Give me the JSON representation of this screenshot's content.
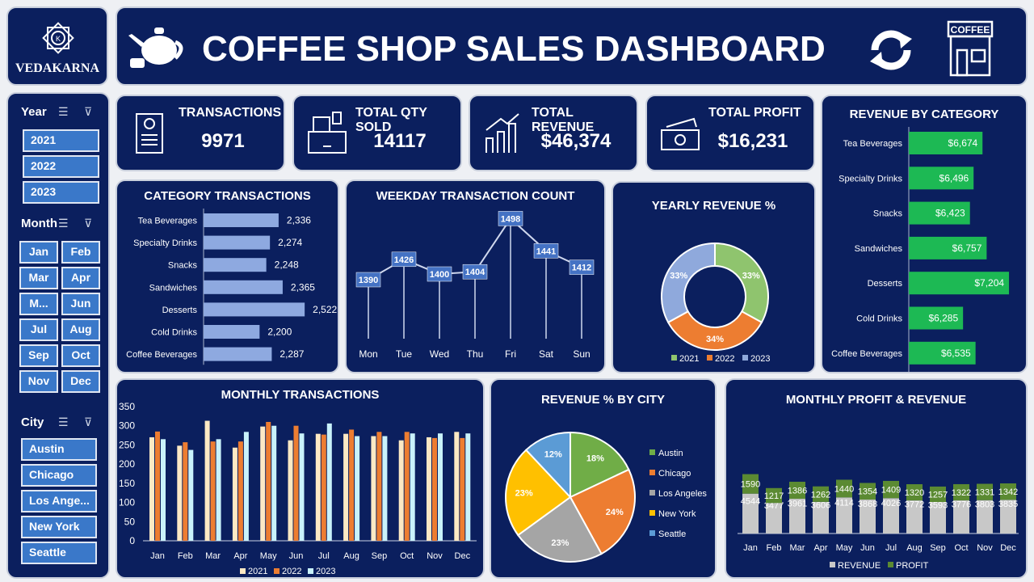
{
  "header": {
    "title": "COFFEE SHOP SALES DASHBOARD",
    "logo_text": "VEDAKARNA",
    "shop_sign": "COFFEE"
  },
  "slicers": {
    "year": {
      "label": "Year",
      "items": [
        "2021",
        "2022",
        "2023"
      ]
    },
    "month": {
      "label": "Month",
      "items": [
        "Jan",
        "Feb",
        "Mar",
        "Apr",
        "M...",
        "Jun",
        "Jul",
        "Aug",
        "Sep",
        "Oct",
        "Nov",
        "Dec"
      ]
    },
    "city": {
      "label": "City",
      "items": [
        "Austin",
        "Chicago",
        "Los Ange...",
        "New York",
        "Seattle"
      ]
    }
  },
  "kpis": [
    {
      "label": "TRANSACTIONS",
      "value": "9971",
      "icon": "receipt-icon"
    },
    {
      "label": "TOTAL QTY SOLD",
      "value": "14117",
      "icon": "cash-register-icon"
    },
    {
      "label": "TOTAL REVENUE",
      "value": "$46,374",
      "icon": "bar-chart-icon"
    },
    {
      "label": "TOTAL PROFIT",
      "value": "$16,231",
      "icon": "money-icon"
    }
  ],
  "colors": {
    "panel": "#0b1f5e",
    "y2021": "#fde9c4",
    "y2022": "#ed7d31",
    "y2023": "#c9f2fb",
    "green": "#1db954",
    "revenue": "#c8c8c8",
    "profit": "#5b8a32"
  },
  "chart_data": [
    {
      "id": "category_transactions",
      "type": "bar",
      "title": "CATEGORY TRANSACTIONS",
      "orientation": "horizontal",
      "categories": [
        "Tea Beverages",
        "Specialty Drinks",
        "Snacks",
        "Sandwiches",
        "Desserts",
        "Cold Drinks",
        "Coffee Beverages"
      ],
      "values": [
        2336,
        2274,
        2248,
        2365,
        2522,
        2200,
        2287
      ],
      "labels": [
        "2,336",
        "2,274",
        "2,248",
        "2,365",
        "2,522",
        "2,200",
        "2,287"
      ]
    },
    {
      "id": "weekday",
      "type": "line",
      "title": "WEEKDAY TRANSACTION COUNT",
      "categories": [
        "Mon",
        "Tue",
        "Wed",
        "Thu",
        "Fri",
        "Sat",
        "Sun"
      ],
      "values": [
        1390,
        1426,
        1400,
        1404,
        1498,
        1441,
        1412
      ]
    },
    {
      "id": "yearly_revenue",
      "type": "pie",
      "title": "YEARLY REVENUE %",
      "donut": true,
      "categories": [
        "2021",
        "2022",
        "2023"
      ],
      "values": [
        33,
        34,
        33
      ],
      "labels": [
        "33%",
        "34%",
        "33%"
      ],
      "colors": [
        "#8fc46e",
        "#ed7d31",
        "#8fa9dc"
      ],
      "legend": "bottom"
    },
    {
      "id": "revenue_by_category",
      "type": "bar",
      "title": "REVENUE BY CATEGORY",
      "orientation": "horizontal",
      "categories": [
        "Tea Beverages",
        "Specialty Drinks",
        "Snacks",
        "Sandwiches",
        "Desserts",
        "Cold Drinks",
        "Coffee Beverages"
      ],
      "values": [
        6674,
        6496,
        6423,
        6757,
        7204,
        6285,
        6535
      ],
      "labels": [
        "$6,674",
        "$6,496",
        "$6,423",
        "$6,757",
        "$7,204",
        "$6,285",
        "$6,535"
      ]
    },
    {
      "id": "monthly_transactions",
      "type": "bar",
      "title": "MONTHLY TRANSACTIONS",
      "categories": [
        "Jan",
        "Feb",
        "Mar",
        "Apr",
        "May",
        "Jun",
        "Jul",
        "Aug",
        "Sep",
        "Oct",
        "Nov",
        "Dec"
      ],
      "ylim": [
        0,
        350
      ],
      "yticks": [
        "0",
        "50",
        "100",
        "150",
        "200",
        "250",
        "300",
        "350"
      ],
      "legend": "bottom",
      "series": [
        {
          "name": "2021",
          "values": [
            270,
            248,
            313,
            243,
            298,
            262,
            279,
            279,
            273,
            262,
            270,
            284
          ]
        },
        {
          "name": "2022",
          "values": [
            285,
            257,
            259,
            259,
            310,
            300,
            277,
            290,
            284,
            284,
            268,
            268
          ]
        },
        {
          "name": "2023",
          "values": [
            265,
            237,
            265,
            284,
            300,
            280,
            306,
            273,
            273,
            280,
            280,
            280
          ]
        }
      ]
    },
    {
      "id": "revenue_by_city",
      "type": "pie",
      "title": "REVENUE % BY CITY",
      "categories": [
        "Austin",
        "Chicago",
        "Los Angeles",
        "New York",
        "Seattle"
      ],
      "values": [
        18,
        24,
        23,
        23,
        12
      ],
      "labels": [
        "18%",
        "24%",
        "23%",
        "23%",
        "12%"
      ],
      "colors": [
        "#70ad47",
        "#ed7d31",
        "#a5a5a5",
        "#ffc000",
        "#5b9bd5"
      ],
      "legend": "right"
    },
    {
      "id": "monthly_profit_revenue",
      "type": "bar",
      "stacked": true,
      "title": "MONTHLY PROFIT & REVENUE",
      "categories": [
        "Jan",
        "Feb",
        "Mar",
        "Apr",
        "May",
        "Jun",
        "Jul",
        "Aug",
        "Sep",
        "Oct",
        "Nov",
        "Dec"
      ],
      "legend": "bottom",
      "series": [
        {
          "name": "REVENUE",
          "values": [
            4544,
            3477,
            3961,
            3606,
            4114,
            3868,
            4026,
            3772,
            3593,
            3776,
            3803,
            3835
          ]
        },
        {
          "name": "PROFIT",
          "values": [
            1590,
            1217,
            1386,
            1262,
            1440,
            1354,
            1409,
            1320,
            1257,
            1322,
            1331,
            1342
          ]
        }
      ]
    }
  ]
}
